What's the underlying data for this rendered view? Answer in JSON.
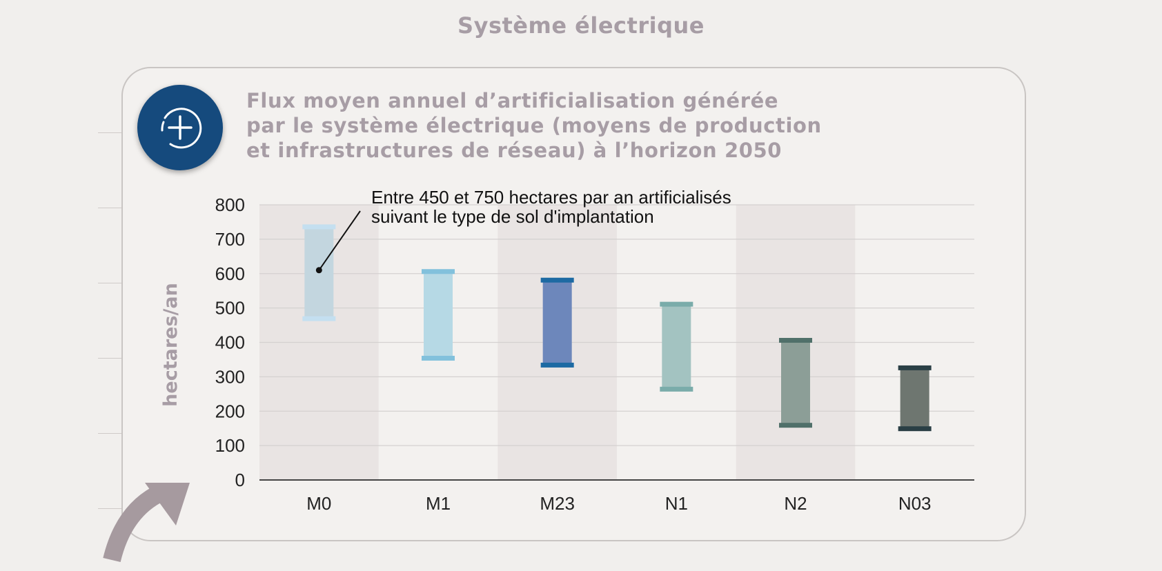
{
  "page_title": "Système électrique",
  "chart_heading": [
    "Flux moyen annuel d’artificialisation générée",
    "par le système électrique (moyens de production",
    "et infrastructures de réseau) à l’horizon 2050"
  ],
  "icons": {
    "badge": "plus-circle-icon",
    "arrow": "curved-arrow-icon"
  },
  "chart_data": {
    "type": "range-bar",
    "title": "Flux moyen annuel d’artificialisation générée par le système électrique (moyens de production et infrastructures de réseau) à l’horizon 2050",
    "ylabel": "hectares/an",
    "xlabel": "",
    "ylim": [
      0,
      800
    ],
    "yticks": [
      0,
      100,
      200,
      300,
      400,
      500,
      600,
      700,
      800
    ],
    "grid": true,
    "categories": [
      "M0",
      "M1",
      "M23",
      "N1",
      "N2",
      "N03"
    ],
    "ranges": [
      {
        "category": "M0",
        "low": 470,
        "high": 735
      },
      {
        "category": "M1",
        "low": 355,
        "high": 605
      },
      {
        "category": "M23",
        "low": 335,
        "high": 580
      },
      {
        "category": "N1",
        "low": 265,
        "high": 510
      },
      {
        "category": "N2",
        "low": 160,
        "high": 405
      },
      {
        "category": "N03",
        "low": 150,
        "high": 325
      }
    ],
    "annotation": {
      "lines": [
        "Entre 450 et 750 hectares par an artificialisés",
        "suivant le type de sol d'implantation"
      ],
      "target_category": "M0",
      "target_value": 610
    },
    "colors": {
      "fills": [
        "#c3d6df",
        "#b6d9e5",
        "#6d87bb",
        "#a3c3c1",
        "#8c9e97",
        "#6e7670"
      ],
      "caps": [
        "#c4dff0",
        "#82c1dc",
        "#1d6aa3",
        "#7aacaa",
        "#50706a",
        "#2a3f45"
      ],
      "band": "#e9e4e3",
      "grid": "#d4d1d0",
      "axis": "#444444",
      "accent": "#154a7d",
      "title": "#a79da5"
    }
  }
}
